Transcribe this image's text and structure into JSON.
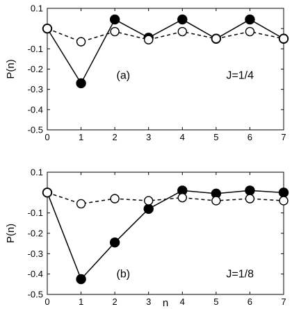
{
  "chart_data": [
    {
      "type": "line",
      "panel_label": "(a)",
      "annotation": "J=1/4",
      "xlabel": "",
      "ylabel": "P(n)",
      "xlim": [
        0,
        7
      ],
      "ylim": [
        -0.5,
        0.1
      ],
      "x_ticks": [
        "0",
        "1",
        "2",
        "3",
        "4",
        "5",
        "6",
        "7"
      ],
      "y_ticks": [
        "0.1",
        "-0.1",
        "-0.2",
        "-0.3",
        "-0.4",
        "-0.5"
      ],
      "y_tick_values": [
        0.1,
        -0.1,
        -0.2,
        -0.3,
        -0.4,
        -0.5
      ],
      "x": [
        0,
        1,
        2,
        3,
        4,
        5,
        6,
        7
      ],
      "series": [
        {
          "style": "solid-filled",
          "values": [
            0.0,
            -0.27,
            0.045,
            -0.045,
            0.045,
            -0.05,
            0.045,
            -0.05
          ]
        },
        {
          "style": "dashed-open",
          "values": [
            0.0,
            -0.065,
            -0.015,
            -0.055,
            -0.015,
            -0.05,
            -0.015,
            -0.05
          ]
        }
      ]
    },
    {
      "type": "line",
      "panel_label": "(b)",
      "annotation": "J=1/8",
      "xlabel": "n",
      "ylabel": "P(n)",
      "xlim": [
        0,
        7
      ],
      "ylim": [
        -0.5,
        0.1
      ],
      "x_ticks": [
        "0",
        "1",
        "2",
        "3",
        "4",
        "5",
        "6",
        "7"
      ],
      "y_ticks": [
        "0.1",
        "-0.1",
        "-0.2",
        "-0.3",
        "-0.4",
        "-0.5"
      ],
      "y_tick_values": [
        0.1,
        -0.1,
        -0.2,
        -0.3,
        -0.4,
        -0.5
      ],
      "x": [
        0,
        1,
        2,
        3,
        4,
        5,
        6,
        7
      ],
      "series": [
        {
          "style": "solid-filled",
          "values": [
            0.0,
            -0.425,
            -0.245,
            -0.08,
            0.01,
            -0.005,
            0.01,
            0.0
          ]
        },
        {
          "style": "dashed-open",
          "values": [
            0.0,
            -0.055,
            -0.03,
            -0.04,
            -0.025,
            -0.04,
            -0.03,
            -0.04
          ]
        }
      ]
    }
  ]
}
